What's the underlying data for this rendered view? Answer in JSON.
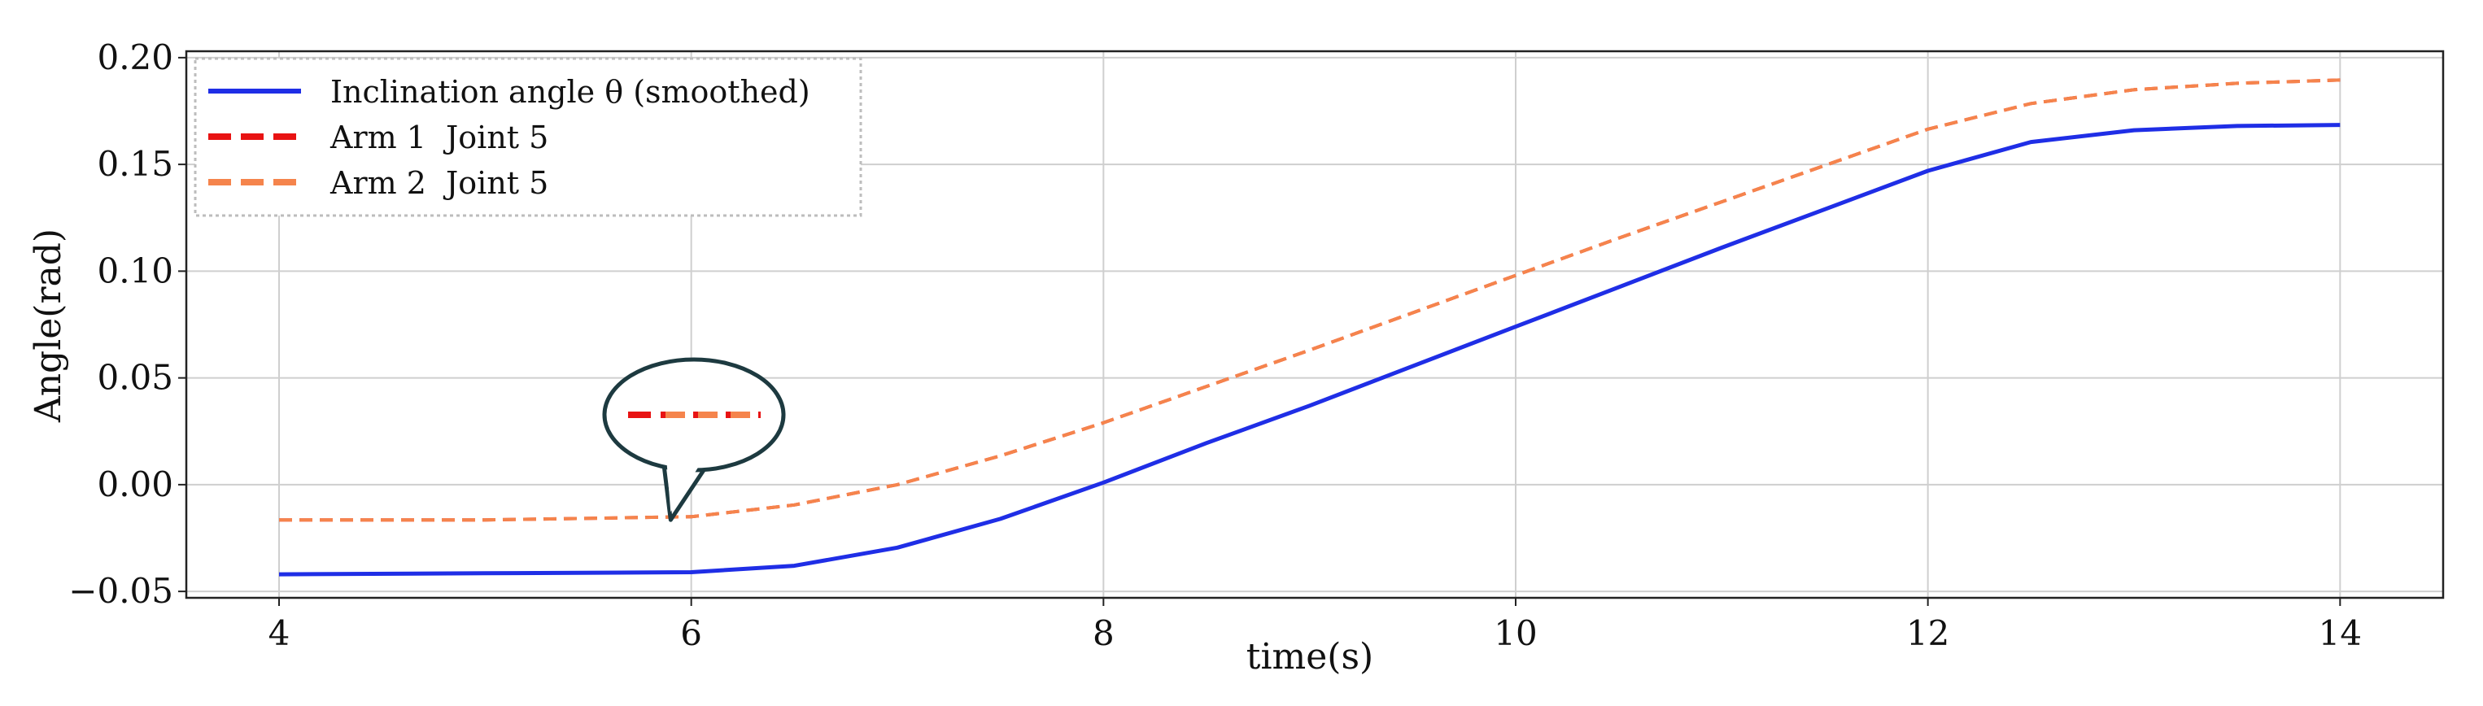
{
  "colors": {
    "inclination": "#1f2ee6",
    "arm1": "#e81313",
    "arm2": "#f5844c",
    "bubble_fill": "#ffffff",
    "bubble_stroke": "#1d3a40",
    "grid": "#cfcfcf",
    "frame": "#222222"
  },
  "chart_data": {
    "type": "line",
    "title": "",
    "xlabel": "time(s)",
    "ylabel": "Angle(rad)",
    "xlim": [
      3.55,
      14.5
    ],
    "ylim": [
      -0.053,
      0.203
    ],
    "xticks": [
      4,
      6,
      8,
      10,
      12,
      14
    ],
    "xtick_labels": [
      "4",
      "6",
      "8",
      "10",
      "12",
      "14"
    ],
    "yticks": [
      -0.05,
      0.0,
      0.05,
      0.1,
      0.15,
      0.2
    ],
    "ytick_labels": [
      "−0.05",
      "0.00",
      "0.05",
      "0.10",
      "0.15",
      "0.20"
    ],
    "grid": true,
    "legend_position": "top-left",
    "x": [
      4.0,
      5.0,
      6.0,
      6.5,
      7.0,
      7.5,
      8.0,
      8.5,
      9.0,
      9.5,
      10.0,
      10.5,
      11.0,
      11.5,
      12.0,
      12.5,
      13.0,
      13.5,
      14.0
    ],
    "series": [
      {
        "name": "Inclination angle θ (smoothed)",
        "style": "solid",
        "values": [
          -0.042,
          -0.0415,
          -0.041,
          -0.038,
          -0.0295,
          -0.016,
          0.001,
          0.0195,
          0.037,
          0.0555,
          0.074,
          0.0925,
          0.111,
          0.129,
          0.147,
          0.1605,
          0.166,
          0.168,
          0.1685
        ]
      },
      {
        "name": "Arm 1  Joint 5",
        "style": "dashed",
        "values": [
          -0.0165,
          -0.0165,
          -0.015,
          -0.0095,
          0.0,
          0.0135,
          0.029,
          0.046,
          0.063,
          0.0805,
          0.098,
          0.1155,
          0.1325,
          0.1495,
          0.1665,
          0.1785,
          0.185,
          0.188,
          0.1895
        ]
      },
      {
        "name": "Arm 2  Joint 5",
        "style": "dashed",
        "values": [
          -0.0165,
          -0.0165,
          -0.015,
          -0.0095,
          0.0,
          0.0135,
          0.029,
          0.046,
          0.063,
          0.0805,
          0.098,
          0.1155,
          0.1325,
          0.1495,
          0.1665,
          0.1785,
          0.185,
          0.188,
          0.1895
        ]
      }
    ],
    "annotations": [
      {
        "type": "callout",
        "anchor": {
          "x": 5.9,
          "y": -0.0165
        }
      }
    ]
  }
}
